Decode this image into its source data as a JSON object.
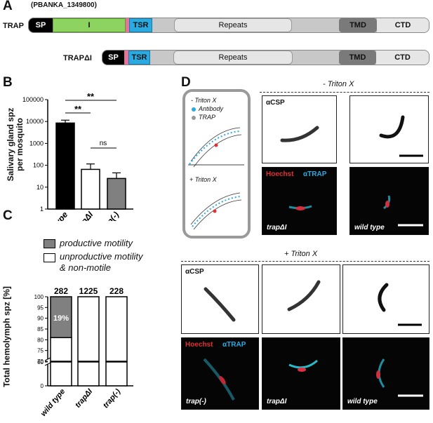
{
  "panelA": {
    "letter": "A",
    "gene_id": "(PBANKA_1349800)",
    "trap": {
      "label": "TRAP",
      "domains": {
        "sp": "SP",
        "i": "I",
        "tsr": "TSR",
        "repeats": "Repeats",
        "tmd": "TMD",
        "ctd": "CTD"
      }
    },
    "trapdi": {
      "label": "TRAPΔI",
      "domains": {
        "sp": "SP",
        "tsr": "TSR",
        "repeats": "Repeats",
        "tmd": "TMD",
        "ctd": "CTD"
      }
    },
    "colors": {
      "sp": "#000000",
      "i": "#8dd35f",
      "tsr": "#29abe2",
      "linker": "#e8739a",
      "repeats": "#e6e6e6",
      "tmd": "#7a7a7a",
      "body": "#c8c8c8"
    }
  },
  "panelB": {
    "letter": "B",
    "ylabel_line1": "Salivary gland spz",
    "ylabel_line2": "per mosquito",
    "sig_top": "**",
    "sig_mid": "**",
    "sig_ns": "ns"
  },
  "panelC": {
    "letter": "C",
    "legend_productive": "productive motility",
    "legend_unproductive_1": "unproductive motility",
    "legend_unproductive_2": "& non-motile",
    "ylabel": "Total hemolymph spz [%]",
    "inner_label": "19%"
  },
  "panelD": {
    "letter": "D",
    "schematic": {
      "minus_triton": "- Triton X",
      "antibody": "Antibody",
      "trap": "TRAP",
      "plus_triton": "+ Triton X"
    },
    "top_header": "- Triton X",
    "bottom_header": "+ Triton X",
    "csp_label": "αCSP",
    "hoechst": "Hoechst",
    "atrap": "αTRAP",
    "top_labels": [
      "trapΔI",
      "wild type"
    ],
    "bottom_labels": [
      "trap(-)",
      "trapΔI",
      "wild type"
    ]
  },
  "chart_data": [
    {
      "type": "bar",
      "panel": "B",
      "categories": [
        "wild type",
        "trapΔI",
        "trap(-)"
      ],
      "values": [
        8500,
        65,
        25
      ],
      "errors": [
        3000,
        50,
        20
      ],
      "bar_colors": [
        "#000000",
        "#ffffff",
        "#808080"
      ],
      "ylabel": "Salivary gland spz per mosquito",
      "yscale": "log",
      "ylim": [
        1,
        100000
      ],
      "yticks": [
        "1",
        "10",
        "100",
        "1000",
        "10000",
        "100000"
      ],
      "annotations": [
        "**",
        "**",
        "ns"
      ]
    },
    {
      "type": "bar",
      "panel": "C",
      "stacked": true,
      "categories": [
        "wild type",
        "trapΔI",
        "trap(-)"
      ],
      "counts": [
        "282",
        "1225",
        "228"
      ],
      "series": [
        {
          "name": "productive motility",
          "values": [
            19,
            0,
            0
          ],
          "color": "#808080"
        },
        {
          "name": "unproductive motility & non-motile",
          "values": [
            81,
            100,
            100
          ],
          "color": "#ffffff"
        }
      ],
      "ylabel": "Total hemolymph spz [%]",
      "yticks": [
        "0",
        "60",
        "70",
        "75",
        "80",
        "85",
        "90",
        "95",
        "100"
      ],
      "ylim": [
        0,
        100
      ],
      "axis_break": [
        60,
        70
      ]
    }
  ]
}
